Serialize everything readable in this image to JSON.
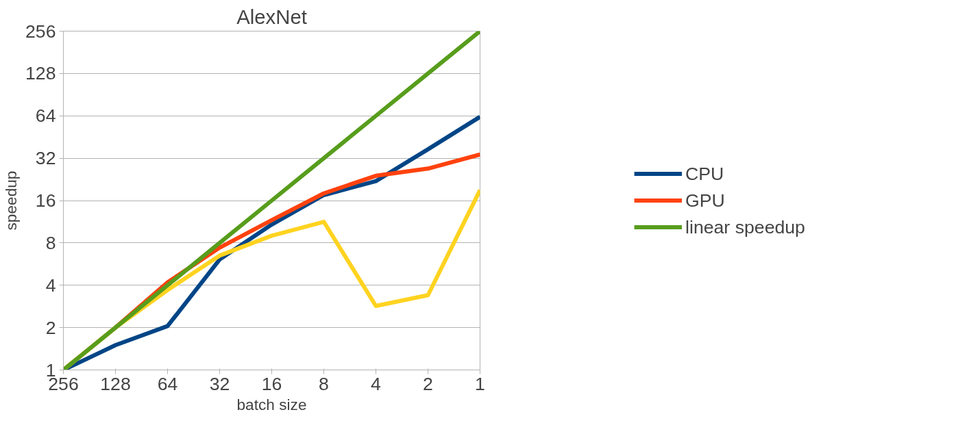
{
  "chart_data": {
    "type": "line",
    "title": "AlexNet",
    "xlabel": "batch size",
    "ylabel": "speedup",
    "categories": [
      "256",
      "128",
      "64",
      "32",
      "16",
      "8",
      "4",
      "2",
      "1"
    ],
    "log": "y",
    "ylim": [
      1,
      256
    ],
    "yticks": [
      1,
      2,
      4,
      8,
      16,
      32,
      64,
      128,
      256
    ],
    "grid": "y",
    "legend": "right",
    "marker": "none",
    "line_style": "solid",
    "series": [
      {
        "name": "CPU",
        "color": "#004586",
        "values": [
          1,
          1.5,
          2.05,
          6.1,
          10.8,
          17.5,
          22,
          37,
          63
        ]
      },
      {
        "name": "GPU",
        "color": "#ff420e",
        "values": [
          1,
          2,
          4.2,
          7.4,
          11.6,
          18,
          24,
          27,
          34
        ]
      },
      {
        "color": "#ffd320",
        "values": [
          1,
          2,
          3.7,
          6.5,
          9,
          11.3,
          2.85,
          3.4,
          19
        ]
      },
      {
        "name": "linear speedup",
        "color": "#579d1c",
        "values": [
          1,
          2,
          4,
          8,
          16,
          32,
          64,
          128,
          256
        ]
      }
    ]
  }
}
